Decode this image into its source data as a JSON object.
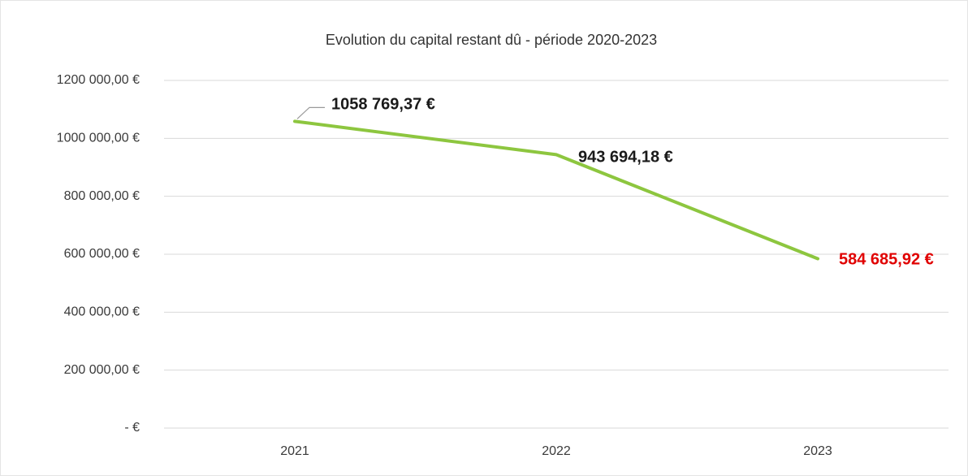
{
  "chart_data": {
    "type": "line",
    "title": "Evolution du capital restant dû - période 2020-2023",
    "categories": [
      "2021",
      "2022",
      "2023"
    ],
    "series": [
      {
        "name": "Capital restant dû",
        "color": "#8dc63f",
        "values": [
          1058769.37,
          943694.18,
          584685.92
        ],
        "value_labels": [
          "1058 769,37 €",
          "943 694,18 €",
          "584 685,92 €"
        ],
        "label_colors": [
          "#1a1a1a",
          "#1a1a1a",
          "#e00000"
        ]
      }
    ],
    "ylim": [
      0,
      1200000
    ],
    "yticks": [
      {
        "value": 0,
        "label": "-   €"
      },
      {
        "value": 200000,
        "label": "200 000,00 €"
      },
      {
        "value": 400000,
        "label": "400 000,00 €"
      },
      {
        "value": 600000,
        "label": "600 000,00 €"
      },
      {
        "value": 800000,
        "label": "800 000,00 €"
      },
      {
        "value": 1000000,
        "label": "1000 000,00 €"
      },
      {
        "value": 1200000,
        "label": "1200 000,00 €"
      }
    ],
    "grid": true
  }
}
